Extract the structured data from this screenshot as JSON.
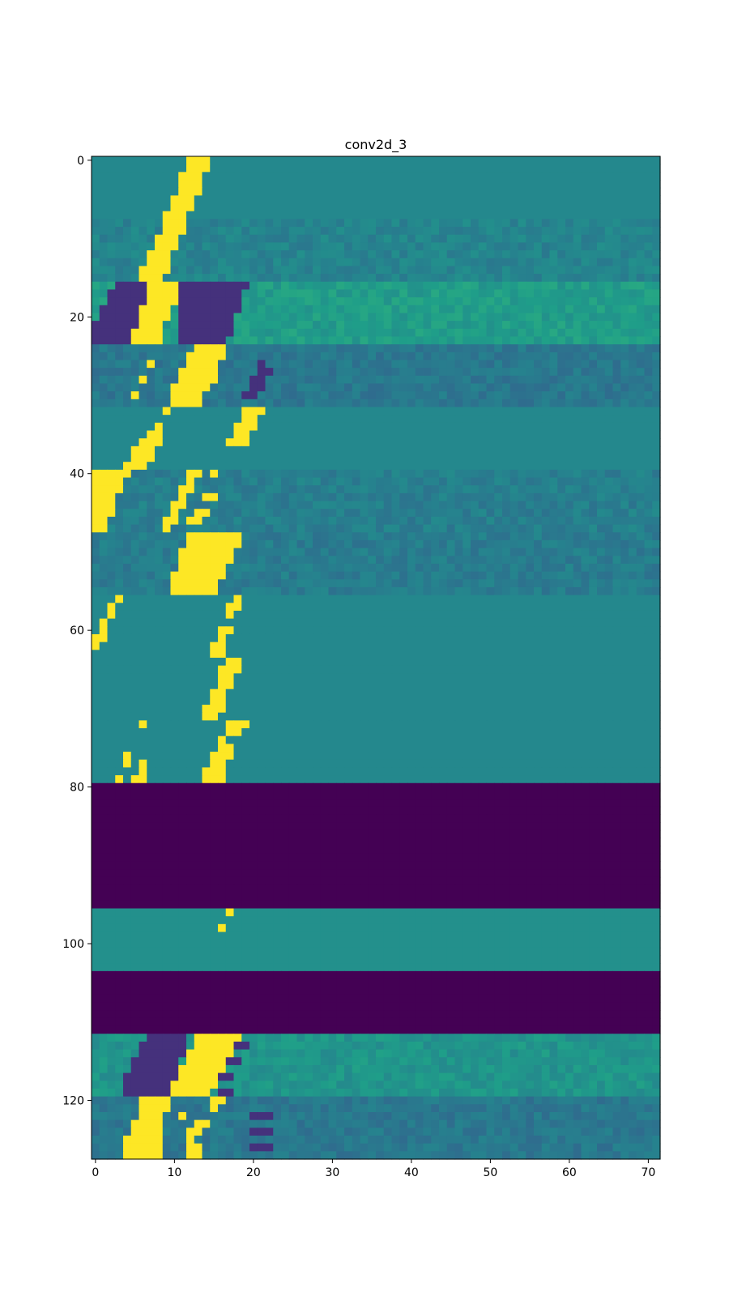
{
  "chart_data": {
    "type": "heatmap",
    "title": "conv2d_3",
    "xlabel": "",
    "ylabel": "",
    "columns": 72,
    "rows": 128,
    "xlim": [
      -0.5,
      71.5
    ],
    "ylim": [
      127.5,
      -0.5
    ],
    "x_ticks": [
      0,
      10,
      20,
      30,
      40,
      50,
      60,
      70
    ],
    "y_ticks": [
      0,
      20,
      40,
      60,
      80,
      100,
      120
    ],
    "colormap": "viridis",
    "colormap_stops": [
      "#440154",
      "#482878",
      "#3e4a89",
      "#31688e",
      "#26828e",
      "#1f9e89",
      "#35b779",
      "#6ece58",
      "#b5de2b",
      "#fde725"
    ],
    "grid": false,
    "legend": "none",
    "bands": [
      {
        "rows": [
          0,
          7
        ],
        "level": 0.47
      },
      {
        "rows": [
          8,
          15
        ],
        "level": 0.45
      },
      {
        "rows": [
          16,
          23
        ],
        "level": 0.55
      },
      {
        "rows": [
          24,
          31
        ],
        "level": 0.4
      },
      {
        "rows": [
          32,
          39
        ],
        "level": 0.47
      },
      {
        "rows": [
          40,
          47
        ],
        "level": 0.43
      },
      {
        "rows": [
          48,
          55
        ],
        "level": 0.42
      },
      {
        "rows": [
          56,
          63
        ],
        "level": 0.47
      },
      {
        "rows": [
          64,
          71
        ],
        "level": 0.47
      },
      {
        "rows": [
          72,
          79
        ],
        "level": 0.47
      },
      {
        "rows": [
          80,
          95
        ],
        "level": 0.0
      },
      {
        "rows": [
          96,
          103
        ],
        "level": 0.5
      },
      {
        "rows": [
          104,
          111
        ],
        "level": 0.0
      },
      {
        "rows": [
          112,
          119
        ],
        "level": 0.52
      },
      {
        "rows": [
          120,
          127
        ],
        "level": 0.4
      }
    ],
    "bright_cells": [
      {
        "row": 0,
        "cols": [
          12,
          14
        ]
      },
      {
        "row": 1,
        "cols": [
          12,
          14
        ]
      },
      {
        "row": 2,
        "cols": [
          11,
          13
        ]
      },
      {
        "row": 3,
        "cols": [
          11,
          13
        ]
      },
      {
        "row": 4,
        "cols": [
          11,
          13
        ]
      },
      {
        "row": 5,
        "cols": [
          10,
          12
        ]
      },
      {
        "row": 6,
        "cols": [
          10,
          12
        ]
      },
      {
        "row": 7,
        "cols": [
          9,
          11
        ]
      },
      {
        "row": 8,
        "cols": [
          9,
          11
        ]
      },
      {
        "row": 9,
        "cols": [
          9,
          11
        ]
      },
      {
        "row": 10,
        "cols": [
          8,
          10
        ]
      },
      {
        "row": 11,
        "cols": [
          8,
          10
        ]
      },
      {
        "row": 12,
        "cols": [
          7,
          9
        ]
      },
      {
        "row": 13,
        "cols": [
          7,
          9
        ]
      },
      {
        "row": 14,
        "cols": [
          6,
          9
        ]
      },
      {
        "row": 15,
        "cols": [
          6,
          8
        ]
      },
      {
        "row": 16,
        "cols": [
          7,
          10
        ]
      },
      {
        "row": 17,
        "cols": [
          7,
          10
        ]
      },
      {
        "row": 18,
        "cols": [
          7,
          10
        ]
      },
      {
        "row": 19,
        "cols": [
          6,
          9
        ]
      },
      {
        "row": 20,
        "cols": [
          6,
          9
        ]
      },
      {
        "row": 21,
        "cols": [
          6,
          8
        ]
      },
      {
        "row": 22,
        "cols": [
          5,
          8
        ]
      },
      {
        "row": 23,
        "cols": [
          5,
          8
        ]
      },
      {
        "row": 24,
        "cols": [
          13,
          16
        ]
      },
      {
        "row": 25,
        "cols": [
          12,
          16
        ]
      },
      {
        "row": 26,
        "cols": [
          12,
          15
        ]
      },
      {
        "row": 27,
        "cols": [
          11,
          15
        ]
      },
      {
        "row": 28,
        "cols": [
          11,
          15
        ]
      },
      {
        "row": 29,
        "cols": [
          10,
          14
        ]
      },
      {
        "row": 30,
        "cols": [
          10,
          13
        ]
      },
      {
        "row": 31,
        "cols": [
          10,
          13
        ]
      },
      {
        "row": 26,
        "cols": [
          7,
          7
        ]
      },
      {
        "row": 28,
        "cols": [
          6,
          6
        ]
      },
      {
        "row": 30,
        "cols": [
          5,
          5
        ]
      },
      {
        "row": 32,
        "cols": [
          9,
          9
        ]
      },
      {
        "row": 32,
        "cols": [
          19,
          21
        ]
      },
      {
        "row": 33,
        "cols": [
          19,
          20
        ]
      },
      {
        "row": 34,
        "cols": [
          8,
          8
        ]
      },
      {
        "row": 34,
        "cols": [
          18,
          20
        ]
      },
      {
        "row": 35,
        "cols": [
          7,
          8
        ]
      },
      {
        "row": 35,
        "cols": [
          18,
          19
        ]
      },
      {
        "row": 36,
        "cols": [
          6,
          8
        ]
      },
      {
        "row": 36,
        "cols": [
          17,
          19
        ]
      },
      {
        "row": 37,
        "cols": [
          5,
          7
        ]
      },
      {
        "row": 38,
        "cols": [
          5,
          7
        ]
      },
      {
        "row": 39,
        "cols": [
          4,
          6
        ]
      },
      {
        "row": 40,
        "cols": [
          0,
          4
        ]
      },
      {
        "row": 41,
        "cols": [
          0,
          3
        ]
      },
      {
        "row": 42,
        "cols": [
          0,
          3
        ]
      },
      {
        "row": 43,
        "cols": [
          0,
          2
        ]
      },
      {
        "row": 44,
        "cols": [
          0,
          2
        ]
      },
      {
        "row": 45,
        "cols": [
          0,
          2
        ]
      },
      {
        "row": 46,
        "cols": [
          0,
          1
        ]
      },
      {
        "row": 47,
        "cols": [
          0,
          1
        ]
      },
      {
        "row": 40,
        "cols": [
          12,
          13
        ]
      },
      {
        "row": 40,
        "cols": [
          15,
          15
        ]
      },
      {
        "row": 41,
        "cols": [
          12,
          12
        ]
      },
      {
        "row": 42,
        "cols": [
          11,
          12
        ]
      },
      {
        "row": 43,
        "cols": [
          11,
          11
        ]
      },
      {
        "row": 43,
        "cols": [
          14,
          15
        ]
      },
      {
        "row": 44,
        "cols": [
          10,
          11
        ]
      },
      {
        "row": 45,
        "cols": [
          10,
          10
        ]
      },
      {
        "row": 45,
        "cols": [
          13,
          14
        ]
      },
      {
        "row": 46,
        "cols": [
          9,
          10
        ]
      },
      {
        "row": 46,
        "cols": [
          12,
          13
        ]
      },
      {
        "row": 47,
        "cols": [
          9,
          9
        ]
      },
      {
        "row": 48,
        "cols": [
          12,
          18
        ]
      },
      {
        "row": 49,
        "cols": [
          12,
          18
        ]
      },
      {
        "row": 50,
        "cols": [
          11,
          17
        ]
      },
      {
        "row": 51,
        "cols": [
          11,
          17
        ]
      },
      {
        "row": 52,
        "cols": [
          11,
          16
        ]
      },
      {
        "row": 53,
        "cols": [
          10,
          16
        ]
      },
      {
        "row": 54,
        "cols": [
          10,
          15
        ]
      },
      {
        "row": 55,
        "cols": [
          10,
          15
        ]
      },
      {
        "row": 56,
        "cols": [
          3,
          3
        ]
      },
      {
        "row": 56,
        "cols": [
          18,
          18
        ]
      },
      {
        "row": 57,
        "cols": [
          2,
          2
        ]
      },
      {
        "row": 57,
        "cols": [
          17,
          18
        ]
      },
      {
        "row": 58,
        "cols": [
          2,
          2
        ]
      },
      {
        "row": 58,
        "cols": [
          17,
          17
        ]
      },
      {
        "row": 59,
        "cols": [
          1,
          1
        ]
      },
      {
        "row": 60,
        "cols": [
          1,
          1
        ]
      },
      {
        "row": 60,
        "cols": [
          16,
          17
        ]
      },
      {
        "row": 61,
        "cols": [
          0,
          1
        ]
      },
      {
        "row": 61,
        "cols": [
          16,
          16
        ]
      },
      {
        "row": 62,
        "cols": [
          0,
          0
        ]
      },
      {
        "row": 62,
        "cols": [
          15,
          16
        ]
      },
      {
        "row": 63,
        "cols": [
          15,
          16
        ]
      },
      {
        "row": 64,
        "cols": [
          17,
          18
        ]
      },
      {
        "row": 65,
        "cols": [
          16,
          18
        ]
      },
      {
        "row": 66,
        "cols": [
          16,
          17
        ]
      },
      {
        "row": 67,
        "cols": [
          16,
          17
        ]
      },
      {
        "row": 68,
        "cols": [
          15,
          16
        ]
      },
      {
        "row": 69,
        "cols": [
          15,
          16
        ]
      },
      {
        "row": 70,
        "cols": [
          14,
          16
        ]
      },
      {
        "row": 71,
        "cols": [
          14,
          15
        ]
      },
      {
        "row": 72,
        "cols": [
          6,
          6
        ]
      },
      {
        "row": 72,
        "cols": [
          17,
          19
        ]
      },
      {
        "row": 73,
        "cols": [
          17,
          18
        ]
      },
      {
        "row": 74,
        "cols": [
          16,
          16
        ]
      },
      {
        "row": 75,
        "cols": [
          16,
          17
        ]
      },
      {
        "row": 76,
        "cols": [
          4,
          4
        ]
      },
      {
        "row": 76,
        "cols": [
          15,
          17
        ]
      },
      {
        "row": 77,
        "cols": [
          4,
          4
        ]
      },
      {
        "row": 77,
        "cols": [
          6,
          6
        ]
      },
      {
        "row": 77,
        "cols": [
          15,
          16
        ]
      },
      {
        "row": 78,
        "cols": [
          6,
          6
        ]
      },
      {
        "row": 78,
        "cols": [
          14,
          16
        ]
      },
      {
        "row": 79,
        "cols": [
          3,
          3
        ]
      },
      {
        "row": 79,
        "cols": [
          5,
          6
        ]
      },
      {
        "row": 79,
        "cols": [
          14,
          16
        ]
      },
      {
        "row": 96,
        "cols": [
          17,
          17
        ]
      },
      {
        "row": 98,
        "cols": [
          16,
          16
        ]
      },
      {
        "row": 112,
        "cols": [
          13,
          18
        ]
      },
      {
        "row": 113,
        "cols": [
          13,
          17
        ]
      },
      {
        "row": 114,
        "cols": [
          12,
          17
        ]
      },
      {
        "row": 115,
        "cols": [
          12,
          16
        ]
      },
      {
        "row": 116,
        "cols": [
          11,
          16
        ]
      },
      {
        "row": 117,
        "cols": [
          11,
          15
        ]
      },
      {
        "row": 118,
        "cols": [
          10,
          15
        ]
      },
      {
        "row": 119,
        "cols": [
          10,
          14
        ]
      },
      {
        "row": 120,
        "cols": [
          6,
          9
        ]
      },
      {
        "row": 121,
        "cols": [
          6,
          9
        ]
      },
      {
        "row": 122,
        "cols": [
          6,
          8
        ]
      },
      {
        "row": 123,
        "cols": [
          5,
          8
        ]
      },
      {
        "row": 124,
        "cols": [
          5,
          8
        ]
      },
      {
        "row": 125,
        "cols": [
          4,
          8
        ]
      },
      {
        "row": 126,
        "cols": [
          4,
          8
        ]
      },
      {
        "row": 127,
        "cols": [
          4,
          8
        ]
      },
      {
        "row": 120,
        "cols": [
          15,
          16
        ]
      },
      {
        "row": 121,
        "cols": [
          15,
          15
        ]
      },
      {
        "row": 122,
        "cols": [
          11,
          11
        ]
      },
      {
        "row": 123,
        "cols": [
          13,
          14
        ]
      },
      {
        "row": 124,
        "cols": [
          12,
          13
        ]
      },
      {
        "row": 125,
        "cols": [
          12,
          12
        ]
      },
      {
        "row": 126,
        "cols": [
          12,
          13
        ]
      },
      {
        "row": 127,
        "cols": [
          12,
          13
        ]
      }
    ],
    "dark_cells": [
      {
        "row": 16,
        "cols": [
          3,
          6
        ]
      },
      {
        "row": 16,
        "cols": [
          11,
          19
        ]
      },
      {
        "row": 17,
        "cols": [
          2,
          6
        ]
      },
      {
        "row": 17,
        "cols": [
          11,
          18
        ]
      },
      {
        "row": 18,
        "cols": [
          2,
          6
        ]
      },
      {
        "row": 18,
        "cols": [
          11,
          18
        ]
      },
      {
        "row": 19,
        "cols": [
          1,
          5
        ]
      },
      {
        "row": 19,
        "cols": [
          11,
          18
        ]
      },
      {
        "row": 20,
        "cols": [
          1,
          5
        ]
      },
      {
        "row": 20,
        "cols": [
          11,
          17
        ]
      },
      {
        "row": 21,
        "cols": [
          0,
          5
        ]
      },
      {
        "row": 21,
        "cols": [
          11,
          17
        ]
      },
      {
        "row": 22,
        "cols": [
          0,
          4
        ]
      },
      {
        "row": 22,
        "cols": [
          11,
          17
        ]
      },
      {
        "row": 23,
        "cols": [
          0,
          4
        ]
      },
      {
        "row": 23,
        "cols": [
          11,
          16
        ]
      },
      {
        "row": 112,
        "cols": [
          7,
          11
        ]
      },
      {
        "row": 113,
        "cols": [
          6,
          11
        ]
      },
      {
        "row": 114,
        "cols": [
          6,
          11
        ]
      },
      {
        "row": 115,
        "cols": [
          5,
          10
        ]
      },
      {
        "row": 116,
        "cols": [
          5,
          10
        ]
      },
      {
        "row": 117,
        "cols": [
          4,
          10
        ]
      },
      {
        "row": 118,
        "cols": [
          4,
          9
        ]
      },
      {
        "row": 119,
        "cols": [
          4,
          9
        ]
      },
      {
        "row": 113,
        "cols": [
          18,
          19
        ]
      },
      {
        "row": 115,
        "cols": [
          17,
          18
        ]
      },
      {
        "row": 117,
        "cols": [
          16,
          17
        ]
      },
      {
        "row": 119,
        "cols": [
          16,
          17
        ]
      },
      {
        "row": 26,
        "cols": [
          21,
          21
        ]
      },
      {
        "row": 27,
        "cols": [
          21,
          22
        ]
      },
      {
        "row": 28,
        "cols": [
          20,
          21
        ]
      },
      {
        "row": 29,
        "cols": [
          20,
          21
        ]
      },
      {
        "row": 30,
        "cols": [
          19,
          20
        ]
      },
      {
        "row": 122,
        "cols": [
          20,
          22
        ]
      },
      {
        "row": 124,
        "cols": [
          20,
          22
        ]
      },
      {
        "row": 126,
        "cols": [
          20,
          22
        ]
      }
    ]
  }
}
